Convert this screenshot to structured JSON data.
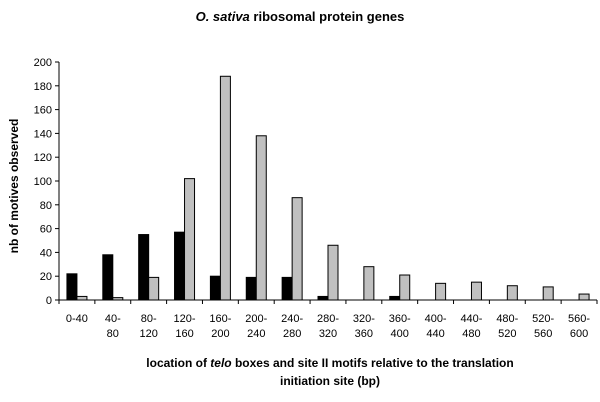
{
  "chart_data": {
    "type": "bar",
    "title": {
      "species": "O. sativa",
      "rest": " ribosomal protein genes"
    },
    "xlabel": {
      "line1_before": "location of ",
      "line1_italic": "telo",
      "line1_after": " boxes and site II motifs relative to the translation",
      "line2": "initiation site (bp)"
    },
    "ylabel": "nb of motives observed",
    "ylim": [
      0,
      200
    ],
    "yticks": [
      0,
      20,
      40,
      60,
      80,
      100,
      120,
      140,
      160,
      180,
      200
    ],
    "grid": false,
    "legend": "none",
    "categories": [
      [
        "0-40",
        ""
      ],
      [
        "40-",
        "80"
      ],
      [
        "80-",
        "120"
      ],
      [
        "120-",
        "160"
      ],
      [
        "160-",
        "200"
      ],
      [
        "200-",
        "240"
      ],
      [
        "240-",
        "280"
      ],
      [
        "280-",
        "320"
      ],
      [
        "320-",
        "360"
      ],
      [
        "360-",
        "400"
      ],
      [
        "400-",
        "440"
      ],
      [
        "440-",
        "480"
      ],
      [
        "480-",
        "520"
      ],
      [
        "520-",
        "560"
      ],
      [
        "560-",
        "600"
      ]
    ],
    "series": [
      {
        "color": "#000000",
        "values": [
          22,
          38,
          55,
          57,
          20,
          19,
          19,
          3,
          0,
          3,
          0,
          0,
          0,
          0,
          0
        ]
      },
      {
        "color": "#c0c0c0",
        "values": [
          3,
          2,
          19,
          102,
          188,
          138,
          86,
          46,
          28,
          21,
          14,
          15,
          12,
          11,
          5
        ]
      }
    ]
  }
}
